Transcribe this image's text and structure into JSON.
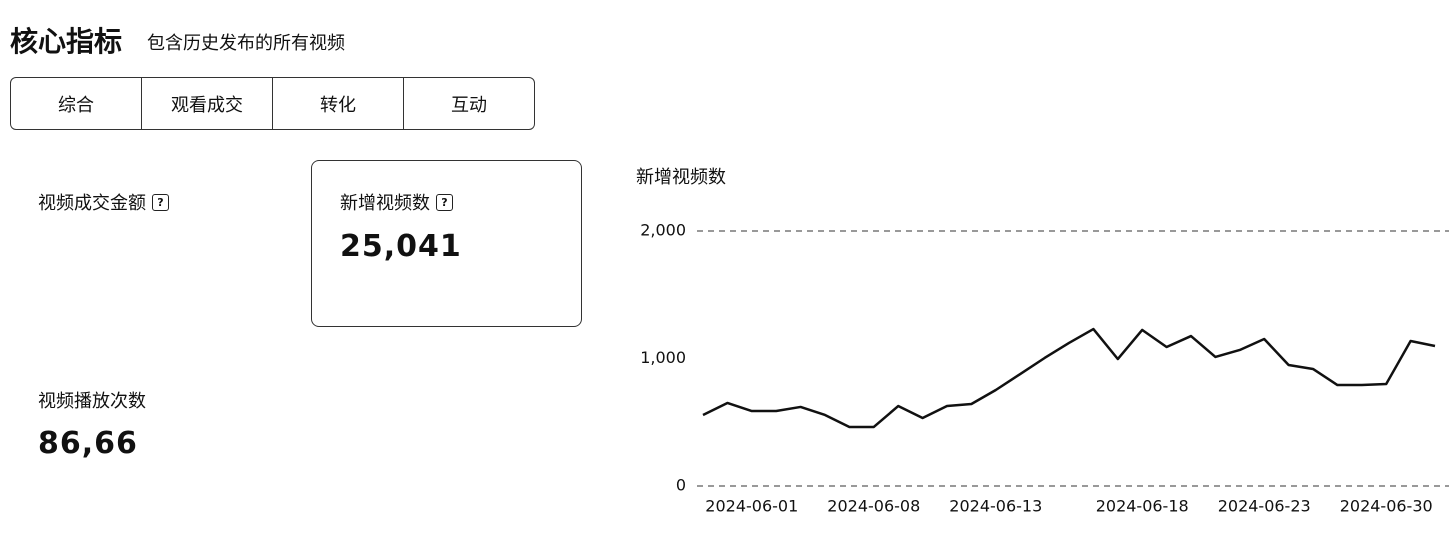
{
  "header": {
    "title": "核心指标",
    "subtitle": "包含历史发布的所有视频"
  },
  "tabs": [
    "综合",
    "观看成交",
    "转化",
    "互动"
  ],
  "metrics": [
    {
      "label": "视频成交金额",
      "help": "?"
    },
    {
      "label": "新增视频数",
      "help": "?",
      "value": "25,041"
    },
    {
      "label": "视频播放次数",
      "value": "86,66"
    }
  ],
  "chart_data": {
    "type": "line",
    "title": "新增视频数",
    "categories": [
      null,
      null,
      "2024-06-01",
      null,
      null,
      null,
      null,
      "2024-06-08",
      null,
      null,
      null,
      null,
      "2024-06-13",
      null,
      null,
      null,
      null,
      null,
      "2024-06-18",
      null,
      null,
      null,
      null,
      "2024-06-23",
      null,
      null,
      null,
      null,
      "2024-06-30",
      null,
      null
    ],
    "series": [
      {
        "name": "新增视频数",
        "color": "#111111",
        "values": [
          557,
          651,
          588,
          588,
          620,
          557,
          463,
          463,
          627,
          533,
          627,
          643,
          753,
          878,
          1004,
          1122,
          1231,
          996,
          1224,
          1090,
          1176,
          1012,
          1067,
          1153,
          949,
          918,
          792,
          792,
          800,
          1137,
          1098
        ]
      }
    ],
    "ylim": [
      0,
      2000
    ],
    "yticks": [
      0,
      {
        "value": 1000,
        "label": "1,000"
      },
      {
        "value": 2000,
        "label": "2,000"
      }
    ],
    "grid": true
  }
}
